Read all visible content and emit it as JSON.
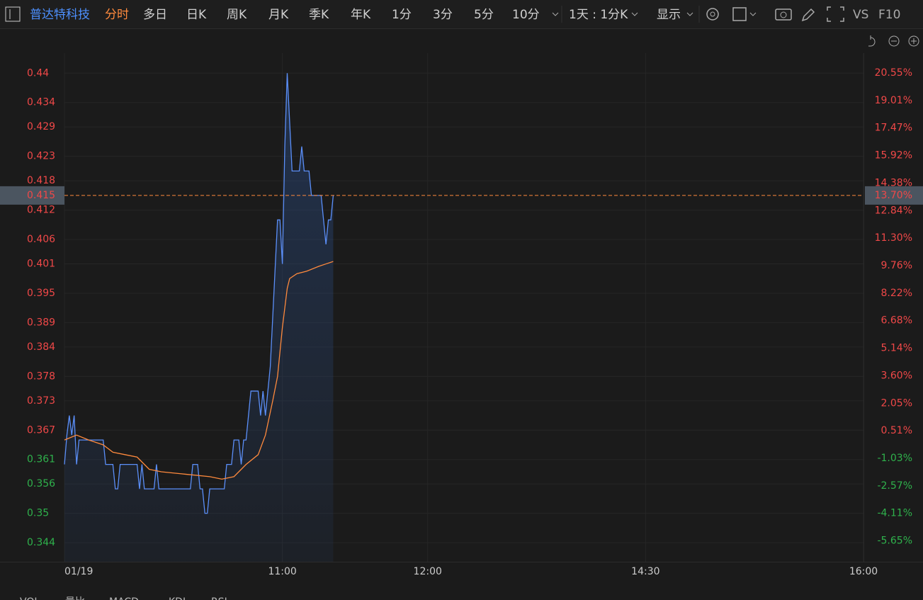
{
  "toolbar": {
    "title": "普达特科技",
    "tabs": [
      "分时",
      "多日",
      "日K",
      "周K",
      "月K",
      "季K",
      "年K",
      "1分",
      "3分",
      "5分",
      "10分"
    ],
    "period": "1天 : 1分K",
    "display": "显示",
    "vs": "VS",
    "f10": "F10"
  },
  "bottom_tabs": [
    "VOL",
    "量比",
    "MACD",
    "KDJ",
    "RSI"
  ],
  "chart_data": {
    "type": "line",
    "xlim": [
      0,
      330
    ],
    "xticks": [
      {
        "value": 0,
        "label": "01/19"
      },
      {
        "value": 90,
        "label": "11:00"
      },
      {
        "value": 150,
        "label": "12:00"
      },
      {
        "value": 240,
        "label": "14:30"
      },
      {
        "value": 330,
        "label": "16:00"
      }
    ],
    "ylim": [
      0.3401,
      0.4441
    ],
    "yticks": [
      0.44,
      0.434,
      0.429,
      0.423,
      0.418,
      0.412,
      0.406,
      0.401,
      0.395,
      0.389,
      0.384,
      0.378,
      0.373,
      0.367,
      0.361,
      0.356,
      0.35,
      0.344
    ],
    "y2lim": [
      -6.82,
      21.66
    ],
    "y2ticks": [
      {
        "value": 20.55,
        "label": "20.55%"
      },
      {
        "value": 19.01,
        "label": "19.01%"
      },
      {
        "value": 17.47,
        "label": "17.47%"
      },
      {
        "value": 15.92,
        "label": "15.92%"
      },
      {
        "value": 14.38,
        "label": "14.38%"
      },
      {
        "value": 12.84,
        "label": "12.84%"
      },
      {
        "value": 11.3,
        "label": "11.30%"
      },
      {
        "value": 9.76,
        "label": "9.76%"
      },
      {
        "value": 8.22,
        "label": "8.22%"
      },
      {
        "value": 6.68,
        "label": "6.68%"
      },
      {
        "value": 5.14,
        "label": "5.14%"
      },
      {
        "value": 3.6,
        "label": "3.60%"
      },
      {
        "value": 2.05,
        "label": "2.05%"
      },
      {
        "value": 0.51,
        "label": "0.51%"
      },
      {
        "value": -1.03,
        "label": "-1.03%"
      },
      {
        "value": -2.57,
        "label": "-2.57%"
      },
      {
        "value": -4.11,
        "label": "-4.11%"
      },
      {
        "value": -5.65,
        "label": "-5.65%"
      }
    ],
    "grid": true,
    "last_price": 0.415,
    "last_change": {
      "value": 13.7,
      "label": "13.70%"
    },
    "series": [
      {
        "color": "#5b8ff9",
        "x": [
          0,
          1,
          2,
          3,
          4,
          5,
          6,
          7,
          8,
          9,
          10,
          11,
          12,
          13,
          14,
          15,
          16,
          17,
          18,
          19,
          20,
          21,
          22,
          23,
          24,
          25,
          26,
          27,
          28,
          29,
          30,
          31,
          32,
          33,
          34,
          35,
          36,
          37,
          38,
          39,
          40,
          41,
          42,
          43,
          44,
          45,
          46,
          47,
          48,
          49,
          50,
          51,
          52,
          53,
          54,
          55,
          56,
          57,
          58,
          59,
          60,
          61,
          62,
          63,
          64,
          65,
          66,
          67,
          68,
          69,
          70,
          71,
          72,
          73,
          74,
          75,
          76,
          77,
          78,
          79,
          80,
          81,
          82,
          83,
          84,
          85,
          86,
          87,
          88,
          89,
          90,
          91,
          92,
          93,
          94,
          95,
          96,
          97,
          98,
          99,
          100,
          101,
          102,
          103,
          104,
          105,
          106,
          107,
          108,
          109,
          110,
          111
        ],
        "values": [
          0.36,
          0.366,
          0.37,
          0.366,
          0.37,
          0.36,
          0.365,
          0.365,
          0.365,
          0.365,
          0.365,
          0.365,
          0.365,
          0.365,
          0.365,
          0.365,
          0.365,
          0.36,
          0.36,
          0.36,
          0.36,
          0.355,
          0.355,
          0.36,
          0.36,
          0.36,
          0.36,
          0.36,
          0.36,
          0.36,
          0.36,
          0.355,
          0.36,
          0.355,
          0.355,
          0.355,
          0.355,
          0.355,
          0.36,
          0.355,
          0.355,
          0.355,
          0.355,
          0.355,
          0.355,
          0.355,
          0.355,
          0.355,
          0.355,
          0.355,
          0.355,
          0.355,
          0.355,
          0.36,
          0.36,
          0.36,
          0.355,
          0.355,
          0.35,
          0.35,
          0.355,
          0.355,
          0.355,
          0.355,
          0.355,
          0.355,
          0.355,
          0.36,
          0.36,
          0.36,
          0.365,
          0.365,
          0.365,
          0.36,
          0.365,
          0.365,
          0.37,
          0.375,
          0.375,
          0.375,
          0.375,
          0.37,
          0.375,
          0.37,
          0.375,
          0.38,
          0.39,
          0.4,
          0.41,
          0.41,
          0.401,
          0.425,
          0.44,
          0.43,
          0.42,
          0.42,
          0.42,
          0.42,
          0.425,
          0.42,
          0.42,
          0.42,
          0.415,
          0.415,
          0.415,
          0.415,
          0.415,
          0.41,
          0.405,
          0.41,
          0.41,
          0.415
        ]
      },
      {
        "color": "#ff8a3d",
        "x": [
          0,
          5,
          10,
          16,
          20,
          25,
          30,
          35,
          40,
          50,
          60,
          65,
          70,
          75,
          80,
          83,
          86,
          88,
          90,
          91,
          92,
          93,
          96,
          100,
          105,
          108,
          111
        ],
        "values": [
          0.365,
          0.366,
          0.365,
          0.364,
          0.3625,
          0.362,
          0.3615,
          0.359,
          0.3585,
          0.358,
          0.3575,
          0.357,
          0.3575,
          0.36,
          0.362,
          0.366,
          0.373,
          0.378,
          0.388,
          0.392,
          0.396,
          0.398,
          0.399,
          0.3995,
          0.4005,
          0.401,
          0.4015
        ]
      }
    ],
    "up_color": "#f04848",
    "down_color": "#2fb24c",
    "last_color": "#ff8a3d"
  }
}
